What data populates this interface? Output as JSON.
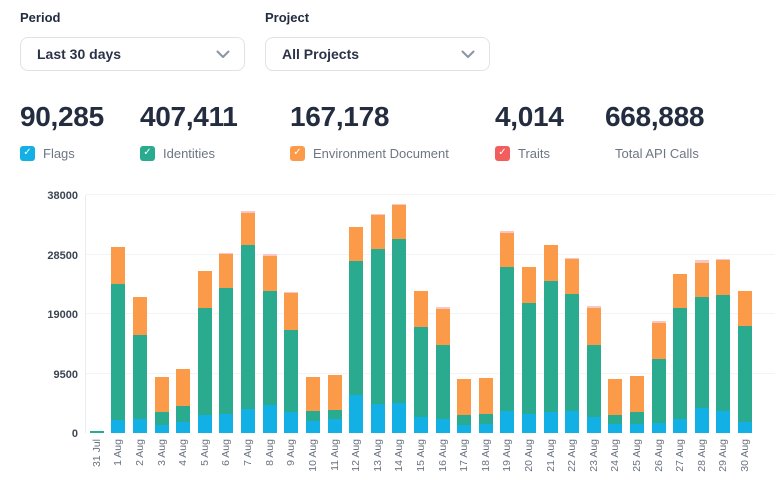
{
  "filters": {
    "period": {
      "label": "Period",
      "value": "Last 30 days"
    },
    "project": {
      "label": "Project",
      "value": "All Projects"
    }
  },
  "stats": [
    {
      "value": "90,285",
      "label": "Flags",
      "color": "#12b0e5",
      "checked": true
    },
    {
      "value": "407,411",
      "label": "Identities",
      "color": "#2aab90",
      "checked": true
    },
    {
      "value": "167,178",
      "label": "Environment Document",
      "color": "#fb9a48",
      "checked": true
    },
    {
      "value": "4,014",
      "label": "Traits",
      "color": "#f25d5d",
      "checked": true
    },
    {
      "value": "668,888",
      "label": "Total API Calls"
    }
  ],
  "chart_data": {
    "type": "bar",
    "stacked": true,
    "ylim": [
      0,
      38000
    ],
    "yticks": [
      0,
      9500,
      19000,
      28500,
      38000
    ],
    "grid": "horizontal",
    "legend_position": "none",
    "categories": [
      "31 Jul",
      "1 Aug",
      "2 Aug",
      "3 Aug",
      "4 Aug",
      "5 Aug",
      "6 Aug",
      "7 Aug",
      "8 Aug",
      "9 Aug",
      "10 Aug",
      "11 Aug",
      "12 Aug",
      "13 Aug",
      "14 Aug",
      "15 Aug",
      "16 Aug",
      "17 Aug",
      "18 Aug",
      "19 Aug",
      "20 Aug",
      "21 Aug",
      "22 Aug",
      "23 Aug",
      "24 Aug",
      "25 Aug",
      "26 Aug",
      "27 Aug",
      "28 Aug",
      "29 Aug",
      "30 Aug"
    ],
    "series": [
      {
        "key": "flags",
        "name": "Flags",
        "color": "#12b0e5",
        "values": [
          0,
          2100,
          2200,
          1300,
          1700,
          2900,
          3000,
          3900,
          4400,
          3300,
          2000,
          2200,
          6050,
          4650,
          4750,
          2550,
          2250,
          1300,
          1400,
          3600,
          3000,
          3400,
          3550,
          2550,
          1500,
          1400,
          1600,
          2250,
          3950,
          3550,
          1800
        ]
      },
      {
        "key": "identities",
        "name": "Identities",
        "color": "#2aab90",
        "values": [
          300,
          21700,
          13500,
          2100,
          2700,
          17000,
          20100,
          26100,
          18200,
          13200,
          1600,
          1550,
          21450,
          24700,
          26300,
          14350,
          11800,
          1550,
          1700,
          22950,
          17800,
          20900,
          18600,
          11550,
          1400,
          2000,
          10250,
          17650,
          17700,
          18450,
          15300
        ]
      },
      {
        "key": "env_document",
        "name": "Environment Document",
        "color": "#fb9a48",
        "values": [
          0,
          5900,
          6000,
          5600,
          5900,
          5900,
          5500,
          5100,
          5600,
          5800,
          5300,
          5550,
          5400,
          5450,
          5400,
          5750,
          5800,
          5850,
          5750,
          5400,
          5750,
          5650,
          5650,
          5900,
          5650,
          5700,
          5750,
          5550,
          5550,
          5550,
          5550
        ]
      },
      {
        "key": "traits",
        "name": "Traits",
        "color": "#f8c6c4",
        "values": [
          0,
          0,
          0,
          0,
          0,
          0,
          200,
          350,
          350,
          250,
          0,
          0,
          0,
          150,
          100,
          0,
          200,
          0,
          0,
          300,
          0,
          0,
          200,
          200,
          0,
          0,
          250,
          0,
          350,
          200,
          0
        ]
      }
    ]
  }
}
